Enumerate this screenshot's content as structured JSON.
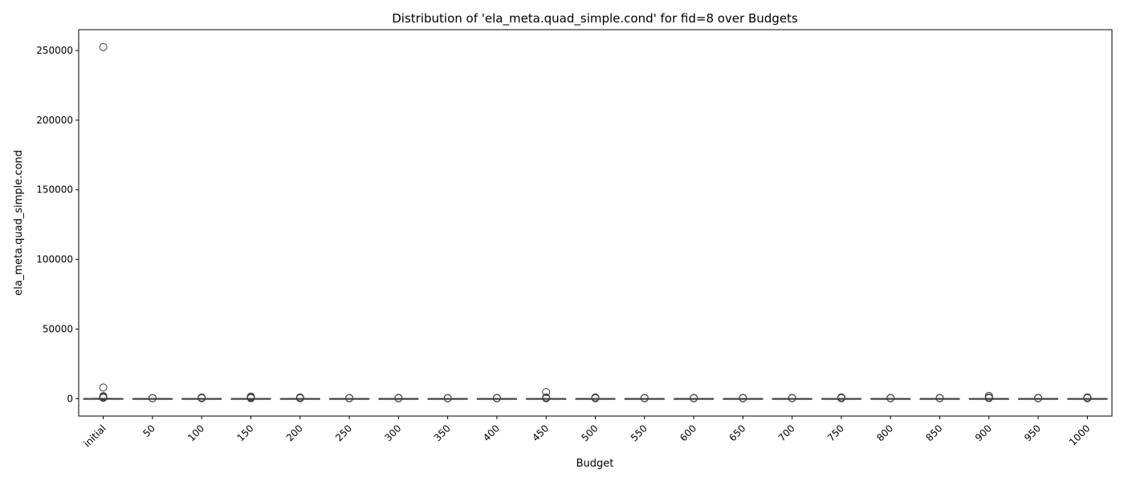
{
  "chart_data": {
    "type": "box",
    "title": "Distribution of 'ela_meta.quad_simple.cond' for fid=8 over Budgets",
    "xlabel": "Budget",
    "ylabel": "ela_meta.quad_simple.cond",
    "ylim": [
      -12500,
      265000
    ],
    "yticks": [
      0,
      50000,
      100000,
      150000,
      200000,
      250000
    ],
    "grid": false,
    "legend": "none",
    "colors": {
      "box_edge": "#3d3d3d",
      "median": "#3d3d3d",
      "outlier": "#3d3d3d",
      "axis": "#000000"
    },
    "categories": [
      "initial",
      "50",
      "100",
      "150",
      "200",
      "250",
      "300",
      "350",
      "400",
      "450",
      "500",
      "550",
      "600",
      "650",
      "700",
      "750",
      "800",
      "850",
      "900",
      "950",
      "1000"
    ],
    "boxes": [
      {
        "category": "initial",
        "q1": 5,
        "median": 30,
        "q3": 90,
        "whisker_low": 1,
        "whisker_high": 220,
        "outliers": [
          252500,
          8000,
          1800,
          1200,
          900,
          600
        ]
      },
      {
        "category": "50",
        "q1": 5,
        "median": 20,
        "q3": 60,
        "whisker_low": 1,
        "whisker_high": 150,
        "outliers": [
          400,
          300
        ]
      },
      {
        "category": "100",
        "q1": 5,
        "median": 25,
        "q3": 70,
        "whisker_low": 1,
        "whisker_high": 170,
        "outliers": [
          800,
          500,
          300
        ]
      },
      {
        "category": "150",
        "q1": 5,
        "median": 25,
        "q3": 80,
        "whisker_low": 1,
        "whisker_high": 200,
        "outliers": [
          1500,
          900,
          600,
          350
        ]
      },
      {
        "category": "200",
        "q1": 5,
        "median": 25,
        "q3": 70,
        "whisker_low": 1,
        "whisker_high": 180,
        "outliers": [
          900,
          600,
          300
        ]
      },
      {
        "category": "250",
        "q1": 5,
        "median": 20,
        "q3": 60,
        "whisker_low": 1,
        "whisker_high": 150,
        "outliers": [
          500,
          300
        ]
      },
      {
        "category": "300",
        "q1": 5,
        "median": 20,
        "q3": 60,
        "whisker_low": 1,
        "whisker_high": 150,
        "outliers": [
          500,
          300
        ]
      },
      {
        "category": "350",
        "q1": 5,
        "median": 20,
        "q3": 60,
        "whisker_low": 1,
        "whisker_high": 150,
        "outliers": [
          400,
          250
        ]
      },
      {
        "category": "400",
        "q1": 5,
        "median": 20,
        "q3": 60,
        "whisker_low": 1,
        "whisker_high": 150,
        "outliers": [
          500,
          300
        ]
      },
      {
        "category": "450",
        "q1": 5,
        "median": 25,
        "q3": 70,
        "whisker_low": 1,
        "whisker_high": 170,
        "outliers": [
          4700,
          900,
          500,
          300
        ]
      },
      {
        "category": "500",
        "q1": 5,
        "median": 25,
        "q3": 70,
        "whisker_low": 1,
        "whisker_high": 170,
        "outliers": [
          900,
          600,
          300
        ]
      },
      {
        "category": "550",
        "q1": 5,
        "median": 20,
        "q3": 60,
        "whisker_low": 1,
        "whisker_high": 150,
        "outliers": [
          500,
          300
        ]
      },
      {
        "category": "600",
        "q1": 5,
        "median": 20,
        "q3": 60,
        "whisker_low": 1,
        "whisker_high": 150,
        "outliers": [
          500,
          300
        ]
      },
      {
        "category": "650",
        "q1": 5,
        "median": 20,
        "q3": 60,
        "whisker_low": 1,
        "whisker_high": 150,
        "outliers": [
          500,
          300
        ]
      },
      {
        "category": "700",
        "q1": 5,
        "median": 20,
        "q3": 60,
        "whisker_low": 1,
        "whisker_high": 150,
        "outliers": [
          500,
          300
        ]
      },
      {
        "category": "750",
        "q1": 5,
        "median": 25,
        "q3": 70,
        "whisker_low": 1,
        "whisker_high": 170,
        "outliers": [
          900,
          600,
          300
        ]
      },
      {
        "category": "800",
        "q1": 5,
        "median": 20,
        "q3": 60,
        "whisker_low": 1,
        "whisker_high": 150,
        "outliers": [
          500,
          300
        ]
      },
      {
        "category": "850",
        "q1": 5,
        "median": 20,
        "q3": 60,
        "whisker_low": 1,
        "whisker_high": 150,
        "outliers": [
          500,
          300
        ]
      },
      {
        "category": "900",
        "q1": 5,
        "median": 25,
        "q3": 70,
        "whisker_low": 1,
        "whisker_high": 170,
        "outliers": [
          2000,
          900,
          400
        ]
      },
      {
        "category": "950",
        "q1": 5,
        "median": 20,
        "q3": 60,
        "whisker_low": 1,
        "whisker_high": 150,
        "outliers": [
          500,
          300
        ]
      },
      {
        "category": "1000",
        "q1": 5,
        "median": 25,
        "q3": 70,
        "whisker_low": 1,
        "whisker_high": 170,
        "outliers": [
          900,
          600,
          300
        ]
      }
    ]
  }
}
